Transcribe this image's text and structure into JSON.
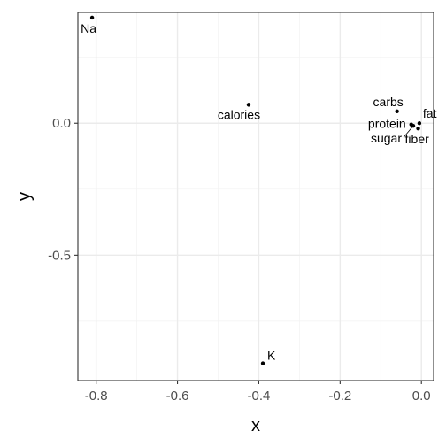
{
  "chart_data": {
    "type": "scatter",
    "xlabel": "x",
    "ylabel": "y",
    "xlim": [
      -0.845,
      0.03
    ],
    "ylim": [
      -0.975,
      0.42
    ],
    "x_ticks": [
      -0.8,
      -0.6,
      -0.4,
      -0.2,
      0.0
    ],
    "x_tick_labels": [
      "-0.8",
      "-0.6",
      "-0.4",
      "-0.2",
      "0.0"
    ],
    "y_ticks": [
      -0.5,
      0.0
    ],
    "y_tick_labels": [
      "-0.5",
      "0.0"
    ],
    "grid": true,
    "points": [
      {
        "label": "Na",
        "x": -0.81,
        "y": 0.4
      },
      {
        "label": "calories",
        "x": -0.425,
        "y": 0.07
      },
      {
        "label": "carbs",
        "x": -0.06,
        "y": 0.045
      },
      {
        "label": "fat",
        "x": -0.005,
        "y": 0.0
      },
      {
        "label": "protein",
        "x": -0.025,
        "y": -0.005
      },
      {
        "label": "sugar",
        "x": -0.02,
        "y": -0.01
      },
      {
        "label": "fiber",
        "x": -0.008,
        "y": -0.02
      },
      {
        "label": "K",
        "x": -0.39,
        "y": -0.91
      }
    ]
  }
}
